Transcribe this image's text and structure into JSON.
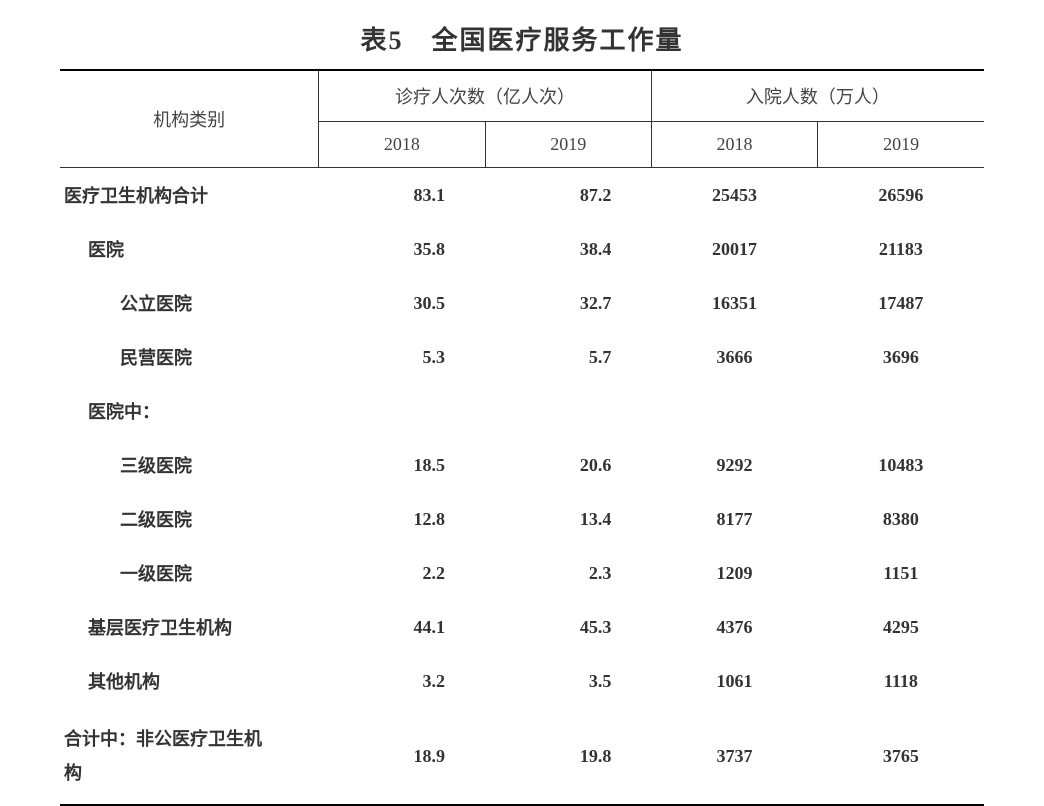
{
  "table": {
    "type": "table",
    "background_color": "#ffffff",
    "text_color": "#333333",
    "border_color": "#000000",
    "sub_border_color": "#333333",
    "font_family": "SimSun",
    "title": "表5　全国医疗服务工作量",
    "title_fontsize": 26,
    "body_fontsize": 18,
    "category_header": "机构类别",
    "groups": [
      {
        "label": "诊疗人次数（亿人次）",
        "years": [
          "2018",
          "2019"
        ]
      },
      {
        "label": "入院人数（万人）",
        "years": [
          "2018",
          "2019"
        ]
      }
    ],
    "rows": [
      {
        "label": "医疗卫生机构合计",
        "indent": 0,
        "bold": true,
        "vals": [
          "83.1",
          "87.2",
          "25453",
          "26596"
        ]
      },
      {
        "label": "医院",
        "indent": 1,
        "bold": true,
        "vals": [
          "35.8",
          "38.4",
          "20017",
          "21183"
        ]
      },
      {
        "label": "公立医院",
        "indent": 2,
        "bold": true,
        "vals": [
          "30.5",
          "32.7",
          "16351",
          "17487"
        ]
      },
      {
        "label": "民营医院",
        "indent": 2,
        "bold": true,
        "vals": [
          "5.3",
          "5.7",
          "3666",
          "3696"
        ]
      },
      {
        "label": "医院中：",
        "indent": 1,
        "bold": true,
        "vals": [
          "",
          "",
          "",
          ""
        ]
      },
      {
        "label": "三级医院",
        "indent": 2,
        "bold": true,
        "vals": [
          "18.5",
          "20.6",
          "9292",
          "10483"
        ]
      },
      {
        "label": "二级医院",
        "indent": 2,
        "bold": true,
        "vals": [
          "12.8",
          "13.4",
          "8177",
          "8380"
        ]
      },
      {
        "label": "一级医院",
        "indent": 2,
        "bold": true,
        "vals": [
          "2.2",
          "2.3",
          "1209",
          "1151"
        ]
      },
      {
        "label": "基层医疗卫生机构",
        "indent": 1,
        "bold": true,
        "vals": [
          "44.1",
          "45.3",
          "4376",
          "4295"
        ]
      },
      {
        "label": "其他机构",
        "indent": 1,
        "bold": true,
        "vals": [
          "3.2",
          "3.5",
          "1061",
          "1118"
        ]
      },
      {
        "label": "合计中：非公医疗卫生机构",
        "indent": 0,
        "bold": true,
        "lastwrap": true,
        "vals": [
          "18.9",
          "19.8",
          "3737",
          "3765"
        ]
      }
    ],
    "column_widths_pct": [
      28,
      18,
      18,
      18,
      18
    ]
  }
}
